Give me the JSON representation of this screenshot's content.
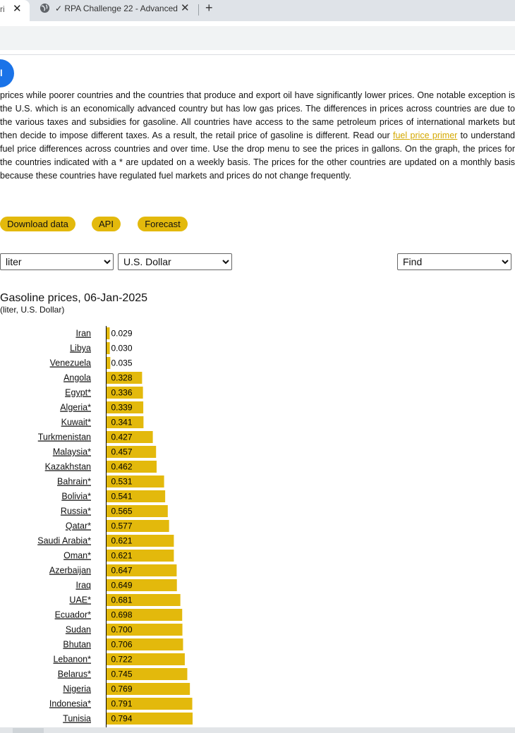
{
  "browser": {
    "active_tab_fragment": "ri",
    "tab2_title": "✓ RPA Challenge 22 - Advanced",
    "new_tab_symbol": "+"
  },
  "page": {
    "fab_label": "l",
    "intro_before_link": "prices while poorer countries and the countries that produce and export oil have significantly lower prices. One notable exception is the U.S. which is an economically advanced country but has low gas prices. The differences in prices across countries are due to the various taxes and subsidies for gasoline. All countries have access to the same petroleum prices of international markets but then decide to impose different taxes. As a result, the retail price of gasoline is different. Read our ",
    "intro_link": "fuel price primer",
    "intro_after_link": " to understand fuel price differences across countries and over time. Use the drop menu to see the prices in gallons. On the graph, the prices for the countries indicated with a * are updated on a weekly basis. The prices for the other countries are updated on a monthly basis because these countries have regulated fuel markets and prices do not change frequently.",
    "buttons": {
      "download": "Download data",
      "api": "API",
      "forecast": "Forecast"
    },
    "selects": {
      "unit": "liter",
      "currency": "U.S. Dollar",
      "find": "Find"
    }
  },
  "colors": {
    "bar": "#e3b90c",
    "accent_blue": "#1a73e8",
    "link": "#d4a800"
  },
  "chart_data": {
    "type": "bar",
    "orientation": "horizontal",
    "title": "Gasoline prices, 06-Jan-2025",
    "subtitle": "(liter, U.S. Dollar)",
    "categories": [
      "Iran",
      "Libya",
      "Venezuela",
      "Angola",
      "Egypt*",
      "Algeria*",
      "Kuwait*",
      "Turkmenistan",
      "Malaysia*",
      "Kazakhstan",
      "Bahrain*",
      "Bolivia*",
      "Russia*",
      "Qatar*",
      "Saudi Arabia*",
      "Oman*",
      "Azerbaijan",
      "Iraq",
      "UAE*",
      "Ecuador*",
      "Sudan",
      "Bhutan",
      "Lebanon*",
      "Belarus*",
      "Nigeria",
      "Indonesia*",
      "Tunisia"
    ],
    "values": [
      0.029,
      0.03,
      0.035,
      0.328,
      0.336,
      0.339,
      0.341,
      0.427,
      0.457,
      0.462,
      0.531,
      0.541,
      0.565,
      0.577,
      0.621,
      0.621,
      0.647,
      0.649,
      0.681,
      0.698,
      0.7,
      0.706,
      0.722,
      0.745,
      0.769,
      0.791,
      0.794
    ],
    "value_labels": [
      "0.029",
      "0.030",
      "0.035",
      "0.328",
      "0.336",
      "0.339",
      "0.341",
      "0.427",
      "0.457",
      "0.462",
      "0.531",
      "0.541",
      "0.565",
      "0.577",
      "0.621",
      "0.621",
      "0.647",
      "0.649",
      "0.681",
      "0.698",
      "0.700",
      "0.706",
      "0.722",
      "0.745",
      "0.769",
      "0.791",
      "0.794"
    ],
    "xlim": [
      0,
      0.794
    ],
    "grid": false,
    "legend": "none"
  }
}
